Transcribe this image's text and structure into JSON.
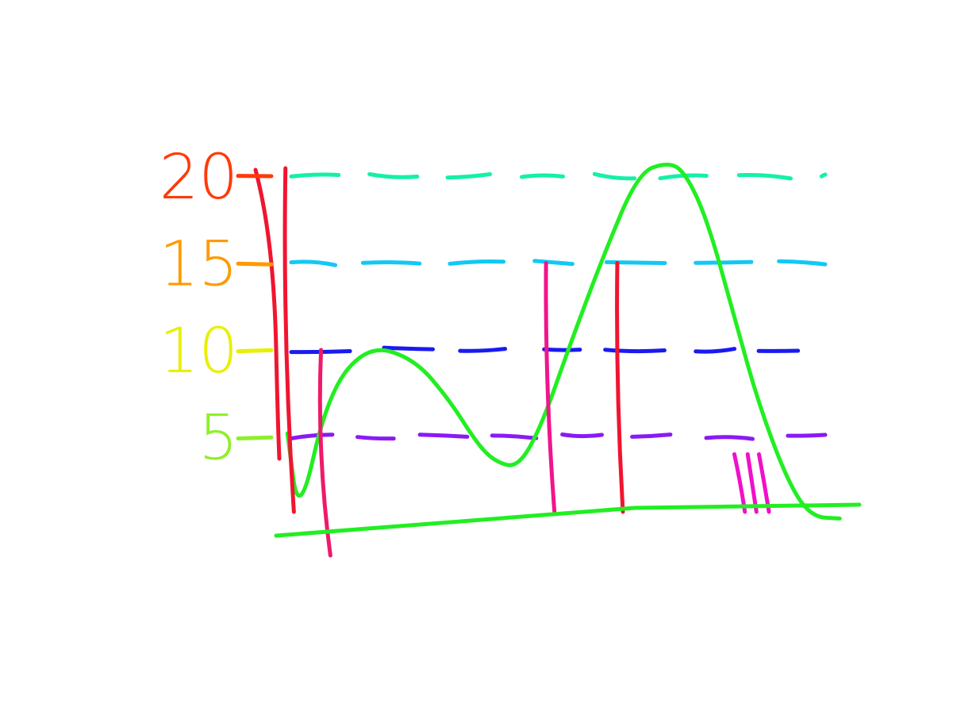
{
  "chart_data": {
    "type": "area",
    "style": "hand-drawn rainbow sketch",
    "title": "",
    "xlabel": "",
    "ylabel": "",
    "ylim": [
      0,
      20
    ],
    "yticks": [
      {
        "value": 20,
        "label": "20",
        "color": "#ff3a0a"
      },
      {
        "value": 15,
        "label": "15",
        "color": "#ff9a00"
      },
      {
        "value": 10,
        "label": "10",
        "color": "#e8f000"
      },
      {
        "value": 5,
        "label": "5",
        "color": "#8ef02a"
      }
    ],
    "xlim": [
      0,
      10
    ],
    "gridlines": [
      {
        "value": 20,
        "color": "#14f0a8"
      },
      {
        "value": 15,
        "color": "#12c8f5"
      },
      {
        "value": 10,
        "color": "#1a1af0"
      },
      {
        "value": 5,
        "color": "#8a1af5"
      }
    ],
    "series": [
      {
        "color": "#22ee22",
        "x": [
          0.1,
          0.3,
          0.8,
          1.5,
          2.3,
          2.9,
          3.4,
          3.7,
          4.1,
          4.5,
          5.0,
          5.6,
          6.2,
          6.7,
          7.0,
          7.4,
          7.9,
          8.3,
          8.8,
          9.2,
          9.7
        ],
        "y": [
          5.2,
          0.1,
          7.5,
          10.3,
          9.5,
          7.2,
          4.6,
          3.6,
          3.2,
          5.5,
          10.2,
          15.5,
          20.2,
          20.8,
          20.3,
          17.5,
          11.5,
          6.8,
          2.4,
          0.4,
          0.3
        ]
      }
    ],
    "vertical_markers": [
      {
        "x": 0.1,
        "color": "#f01530"
      },
      {
        "x": 0.7,
        "color": "#ee1a6a"
      },
      {
        "x": 4.6,
        "color": "#f0158c"
      },
      {
        "x": 5.8,
        "color": "#f01530"
      },
      {
        "x": 7.9,
        "color": "#f010c8"
      },
      {
        "x": 8.1,
        "color": "#f010c8"
      },
      {
        "x": 8.3,
        "color": "#f010c8"
      }
    ],
    "grid": true,
    "legend": "none"
  }
}
